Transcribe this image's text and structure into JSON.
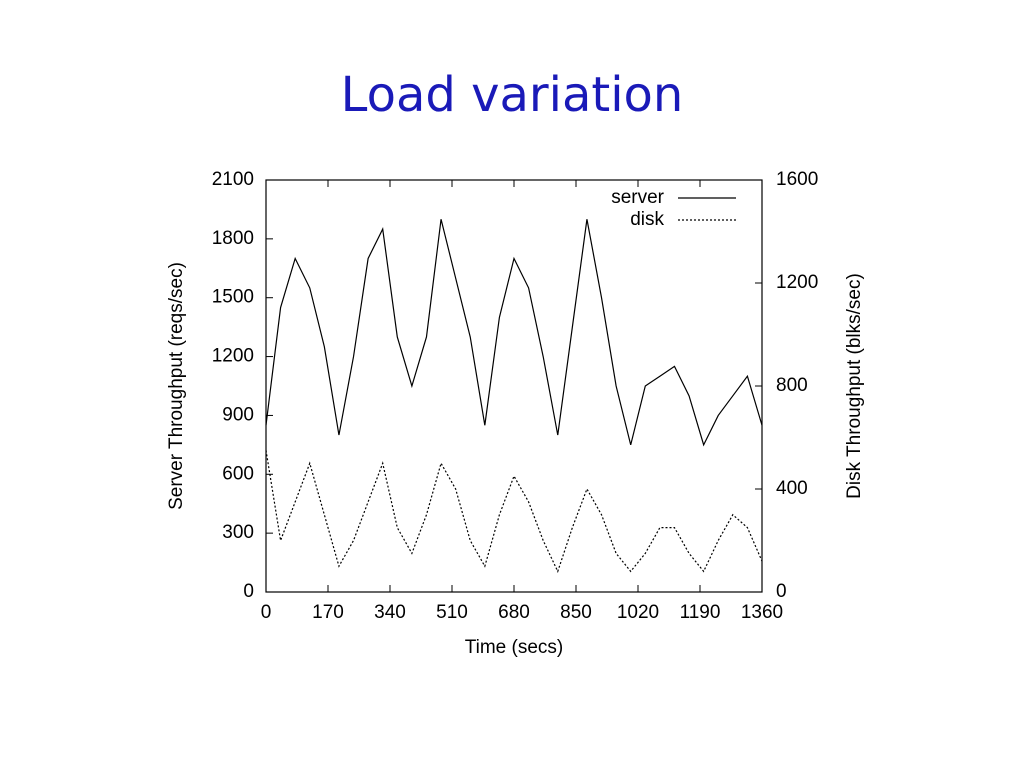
{
  "title": "Load variation",
  "chart_data": {
    "type": "line",
    "x_label": "Time (secs)",
    "y_label": "Server Throughput (reqs/sec)",
    "y2_label": "Disk Throughput (blks/sec)",
    "x": [
      0,
      40,
      80,
      120,
      160,
      200,
      240,
      280,
      320,
      360,
      400,
      440,
      480,
      520,
      560,
      600,
      640,
      680,
      720,
      760,
      800,
      840,
      880,
      920,
      960,
      1000,
      1040,
      1080,
      1120,
      1160,
      1200,
      1240,
      1280,
      1320,
      1360
    ],
    "series": [
      {
        "name": "server",
        "color": "#000000",
        "line_style": "solid",
        "values": [
          850,
          1450,
          1700,
          1550,
          1250,
          800,
          1200,
          1700,
          1850,
          1300,
          1050,
          1300,
          1900,
          1600,
          1300,
          850,
          1400,
          1700,
          1550,
          1200,
          800,
          1350,
          1900,
          1500,
          1050,
          750,
          1050,
          1100,
          1150,
          1000,
          750,
          900,
          1000,
          1100,
          850
        ]
      },
      {
        "name": "disk",
        "color": "#000000",
        "line_style": "dotted",
        "axis": "y2",
        "values": [
          550,
          200,
          350,
          500,
          300,
          100,
          200,
          350,
          500,
          250,
          150,
          300,
          500,
          400,
          200,
          100,
          300,
          450,
          350,
          200,
          80,
          250,
          400,
          300,
          150,
          80,
          150,
          250,
          250,
          150,
          80,
          200,
          300,
          250,
          120
        ]
      }
    ],
    "xlim": [
      0,
      1360
    ],
    "xticks": [
      0,
      170,
      340,
      510,
      680,
      850,
      1020,
      1190,
      1360
    ],
    "ylim": [
      0,
      2100
    ],
    "yticks": [
      0,
      300,
      600,
      900,
      1200,
      1500,
      1800,
      2100
    ],
    "y2lim": [
      0,
      1600
    ],
    "y2ticks": [
      0,
      400,
      800,
      1200,
      1600
    ],
    "legend": "top-right"
  }
}
